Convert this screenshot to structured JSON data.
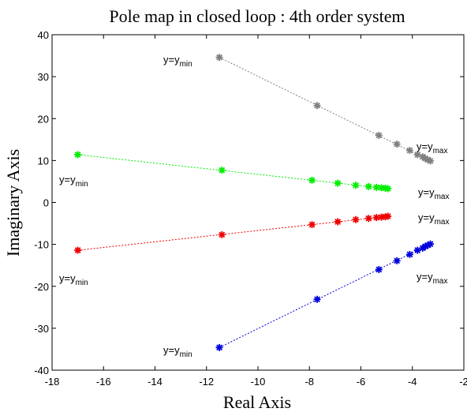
{
  "chart_data": {
    "type": "scatter",
    "title": "Pole map in closed loop : 4th order system",
    "xlabel": "Real Axis",
    "ylabel": "Imaginary Axis",
    "xlim": [
      -18,
      -2
    ],
    "ylim": [
      -40,
      40
    ],
    "xticks": [
      -18,
      -16,
      -14,
      -12,
      -10,
      -8,
      -6,
      -4,
      -2
    ],
    "yticks": [
      -40,
      -30,
      -20,
      -10,
      0,
      10,
      20,
      30,
      40
    ],
    "xtick_labels": [
      "-18",
      "-16",
      "-14",
      "-12",
      "-10",
      "-8",
      "-6",
      "-4",
      "-2"
    ],
    "ytick_labels": [
      "-40",
      "-30",
      "-20",
      "-10",
      "0",
      "10",
      "20",
      "30",
      "40"
    ],
    "grid": false,
    "series": [
      {
        "color": "#808080",
        "x": [
          -11.5,
          -7.7,
          -5.3,
          -4.6,
          -4.1,
          -3.8,
          -3.6,
          -3.5,
          -3.4,
          -3.3
        ],
        "y": [
          34.6,
          23.1,
          16.0,
          13.9,
          12.4,
          11.4,
          10.9,
          10.5,
          10.2,
          9.9
        ]
      },
      {
        "color": "#00ee00",
        "x": [
          -17.0,
          -11.4,
          -7.9,
          -6.9,
          -6.2,
          -5.7,
          -5.4,
          -5.2,
          -5.05,
          -4.95
        ],
        "y": [
          11.4,
          7.7,
          5.3,
          4.6,
          4.1,
          3.8,
          3.6,
          3.5,
          3.4,
          3.3
        ]
      },
      {
        "color": "#ee0000",
        "x": [
          -17.0,
          -11.4,
          -7.9,
          -6.9,
          -6.2,
          -5.7,
          -5.4,
          -5.2,
          -5.05,
          -4.95
        ],
        "y": [
          -11.4,
          -7.7,
          -5.3,
          -4.6,
          -4.1,
          -3.8,
          -3.6,
          -3.5,
          -3.4,
          -3.3
        ]
      },
      {
        "color": "#0000dd",
        "x": [
          -11.5,
          -7.7,
          -5.3,
          -4.6,
          -4.1,
          -3.8,
          -3.6,
          -3.5,
          -3.4,
          -3.3
        ],
        "y": [
          -34.6,
          -23.1,
          -16.0,
          -13.9,
          -12.4,
          -11.4,
          -10.9,
          -10.5,
          -10.2,
          -9.9
        ]
      }
    ],
    "annotations": [
      {
        "base": "y=y",
        "sub": "min"
      },
      {
        "base": "y=y",
        "sub": "max"
      },
      {
        "base": "y=y",
        "sub": "min"
      },
      {
        "base": "y=y",
        "sub": "max"
      },
      {
        "base": "y=y",
        "sub": "max"
      },
      {
        "base": "y=y",
        "sub": "min"
      },
      {
        "base": "y=y",
        "sub": "max"
      },
      {
        "base": "y=y",
        "sub": "min"
      }
    ]
  }
}
